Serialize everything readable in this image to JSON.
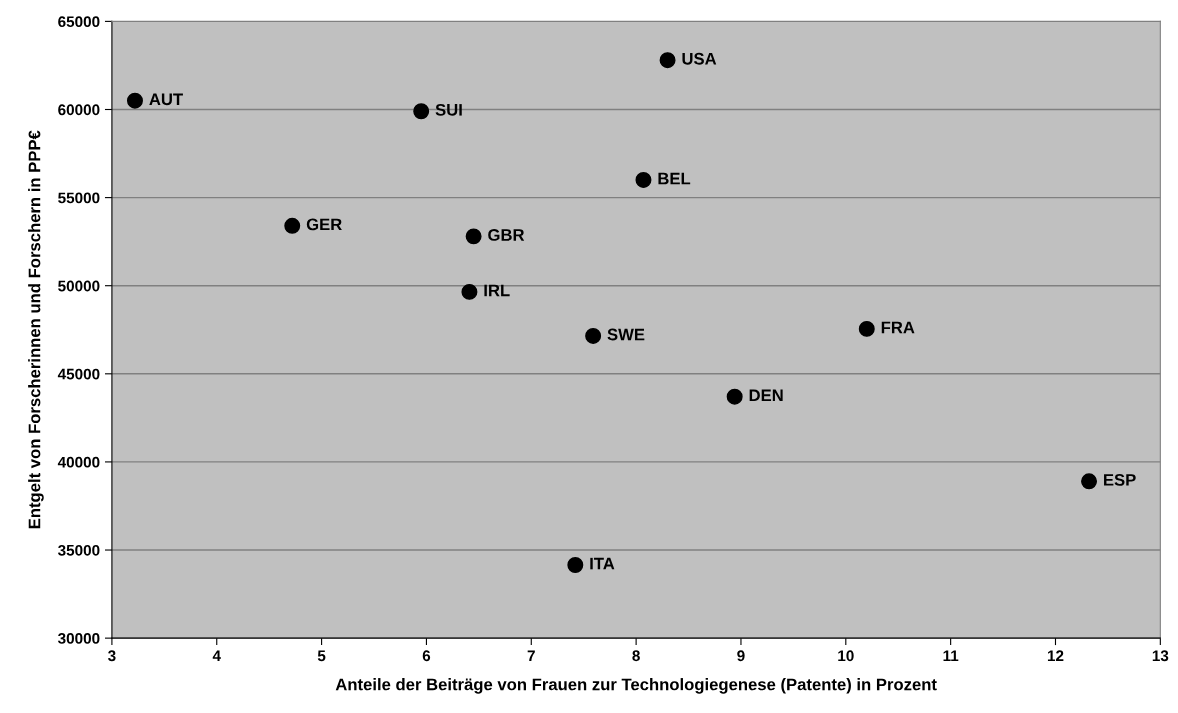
{
  "chart_data": {
    "type": "scatter",
    "xlabel": "Anteile der Beiträge von Frauen zur Technologiegenese (Patente) in Prozent",
    "ylabel": "Entgelt von Forscherinnen und Forschern in PPP€",
    "x": [
      3.22,
      5.95,
      8.3,
      8.07,
      4.72,
      6.45,
      6.41,
      7.59,
      10.2,
      8.94,
      12.32,
      7.42
    ],
    "series": [
      {
        "color": "#000000",
        "values": [
          60500,
          59900,
          62800,
          56000,
          53400,
          52800,
          49650,
          47150,
          47550,
          43700,
          38900,
          34150
        ]
      }
    ],
    "annotations": [
      {
        "text": "AUT",
        "x": 3.22,
        "y": 60500
      },
      {
        "text": "SUI",
        "x": 5.95,
        "y": 59900
      },
      {
        "text": "USA",
        "x": 8.3,
        "y": 62800
      },
      {
        "text": "BEL",
        "x": 8.07,
        "y": 56000
      },
      {
        "text": "GER",
        "x": 4.72,
        "y": 53400
      },
      {
        "text": "GBR",
        "x": 6.45,
        "y": 52800
      },
      {
        "text": "IRL",
        "x": 6.41,
        "y": 49650
      },
      {
        "text": "SWE",
        "x": 7.59,
        "y": 47150
      },
      {
        "text": "FRA",
        "x": 10.2,
        "y": 47550
      },
      {
        "text": "DEN",
        "x": 8.94,
        "y": 43700
      },
      {
        "text": "ESP",
        "x": 12.32,
        "y": 38900
      },
      {
        "text": "ITA",
        "x": 7.42,
        "y": 34150
      }
    ],
    "xlim": [
      3,
      13
    ],
    "xticks": [
      3,
      4,
      5,
      6,
      7,
      8,
      9,
      10,
      11,
      12,
      13
    ],
    "ylim": [
      30000,
      65000
    ],
    "yticks": [
      30000,
      35000,
      40000,
      45000,
      50000,
      55000,
      60000,
      65000
    ],
    "grid": "y",
    "marker": "circle"
  }
}
